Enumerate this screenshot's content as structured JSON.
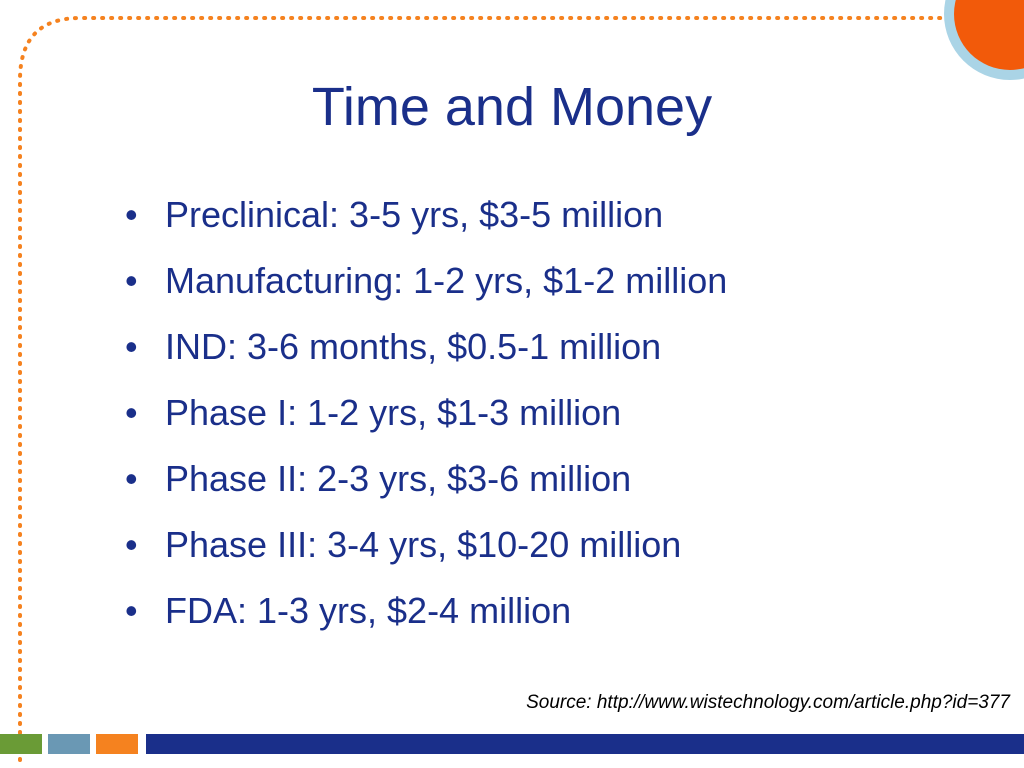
{
  "slide": {
    "title": "Time and Money",
    "bullets": [
      "Preclinical: 3-5 yrs, $3-5 million",
      "Manufacturing: 1-2 yrs, $1-2 million",
      "IND: 3-6 months, $0.5-1 million",
      "Phase I: 1-2 yrs, $1-3 million",
      "Phase II: 2-3 yrs, $3-6 million",
      "Phase III: 3-4 yrs, $10-20 million",
      "FDA: 1-3 yrs, $2-4 million"
    ],
    "source": "Source: http://www.wistechnology.com/article.php?id=377"
  }
}
